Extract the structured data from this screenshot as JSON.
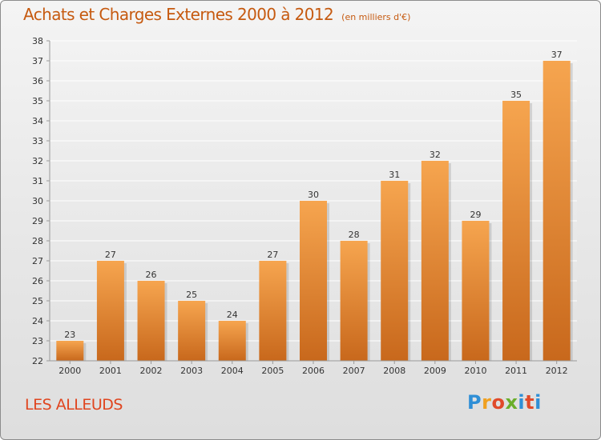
{
  "title": "Achats et Charges Externes 2000 à 2012",
  "subtitle": "(en milliers d'€)",
  "commune": "LES ALLEUDS",
  "brand": "Proxiti",
  "colors": {
    "bar_light": "#f6a54f",
    "bar_dark": "#c8681c",
    "text": "#c65a10",
    "commune": "#e0451f"
  },
  "chart_data": {
    "type": "bar",
    "categories": [
      "2000",
      "2001",
      "2002",
      "2003",
      "2004",
      "2005",
      "2006",
      "2007",
      "2008",
      "2009",
      "2010",
      "2011",
      "2012"
    ],
    "values": [
      23,
      27,
      26,
      25,
      24,
      27,
      30,
      28,
      31,
      32,
      29,
      35,
      37
    ],
    "title": "Achats et Charges Externes 2000 à 2012",
    "subtitle": "(en milliers d'€)",
    "ylim": [
      22,
      38
    ],
    "yticks": [
      22,
      23,
      24,
      25,
      26,
      27,
      28,
      29,
      30,
      31,
      32,
      33,
      34,
      35,
      36,
      37,
      38
    ],
    "grid": true,
    "data_labels": true
  }
}
